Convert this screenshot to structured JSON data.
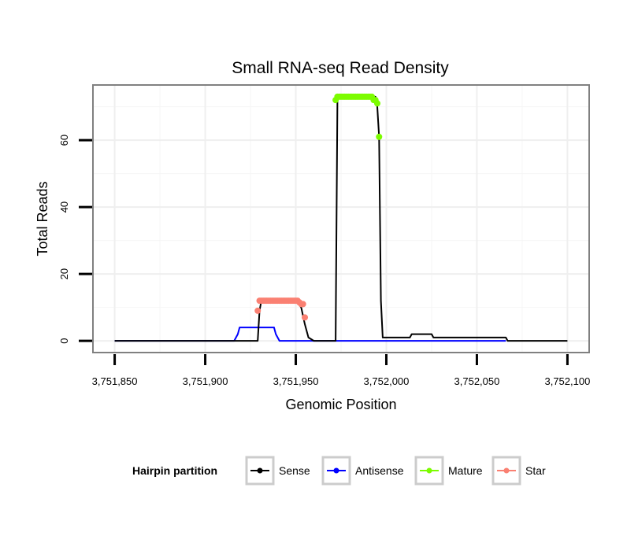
{
  "chart_data": {
    "type": "line",
    "title": "Small RNA-seq Read Density",
    "xlabel": "Genomic Position",
    "ylabel": "Total Reads",
    "xlim": [
      3751838,
      3752112
    ],
    "ylim": [
      -3.5,
      76.5
    ],
    "x_ticks": [
      3751850,
      3751900,
      3751950,
      3752000,
      3752050,
      3752100
    ],
    "x_tick_labels": [
      "3,751,850",
      "3,751,900",
      "3,751,950",
      "3,752,000",
      "3,752,050",
      "3,752,100"
    ],
    "y_ticks": [
      0,
      20,
      40,
      60
    ],
    "y_tick_labels": [
      "0",
      "20",
      "40",
      "60"
    ],
    "legend": {
      "title": "Hairpin partition",
      "position": "bottom",
      "entries": [
        {
          "label": "Sense",
          "color": "#000000"
        },
        {
          "label": "Antisense",
          "color": "#0000ff"
        },
        {
          "label": "Mature",
          "color": "#7cfc00"
        },
        {
          "label": "Star",
          "color": "#fa8072"
        }
      ]
    },
    "series": [
      {
        "name": "Sense",
        "color": "#000000",
        "kind": "line",
        "x": [
          3751850,
          3751929,
          3751930,
          3751931,
          3751950,
          3751953,
          3751955,
          3751957,
          3751960,
          3751972,
          3751973,
          3751974,
          3751994,
          3751995,
          3751996,
          3751997,
          3751998,
          3752013,
          3752014,
          3752025,
          3752026,
          3752066,
          3752067,
          3752100
        ],
        "y": [
          0,
          0,
          9,
          12,
          12,
          10,
          5,
          1,
          0,
          0,
          72,
          73,
          73,
          70,
          61,
          12,
          1,
          1,
          2,
          2,
          1,
          1,
          0,
          0
        ]
      },
      {
        "name": "Antisense",
        "color": "#0000ff",
        "kind": "line",
        "x": [
          3751850,
          3751916,
          3751917,
          3751918,
          3751919,
          3751938,
          3751939,
          3751940,
          3751941,
          3752066
        ],
        "y": [
          0,
          0,
          1,
          2,
          4,
          4,
          2,
          1,
          0,
          0
        ]
      },
      {
        "name": "Mature",
        "color": "#7cfc00",
        "kind": "points",
        "x": [
          3751972,
          3751973,
          3751974,
          3751975,
          3751976,
          3751977,
          3751978,
          3751979,
          3751980,
          3751981,
          3751982,
          3751983,
          3751984,
          3751985,
          3751986,
          3751987,
          3751988,
          3751989,
          3751990,
          3751991,
          3751992,
          3751993,
          3751994,
          3751995,
          3751996
        ],
        "y": [
          72,
          73,
          73,
          73,
          73,
          73,
          73,
          73,
          73,
          73,
          73,
          73,
          73,
          73,
          73,
          73,
          73,
          73,
          73,
          73,
          73,
          72,
          72,
          71,
          61
        ]
      },
      {
        "name": "Star",
        "color": "#fa8072",
        "kind": "points",
        "x": [
          3751929,
          3751930,
          3751931,
          3751932,
          3751933,
          3751934,
          3751935,
          3751936,
          3751937,
          3751938,
          3751939,
          3751940,
          3751941,
          3751942,
          3751943,
          3751944,
          3751945,
          3751946,
          3751947,
          3751948,
          3751949,
          3751950,
          3751951,
          3751952,
          3751953,
          3751954,
          3751955
        ],
        "y": [
          9,
          12,
          12,
          12,
          12,
          12,
          12,
          12,
          12,
          12,
          12,
          12,
          12,
          12,
          12,
          12,
          12,
          12,
          12,
          12,
          12,
          12,
          12,
          11.5,
          11,
          11,
          7
        ]
      }
    ]
  }
}
